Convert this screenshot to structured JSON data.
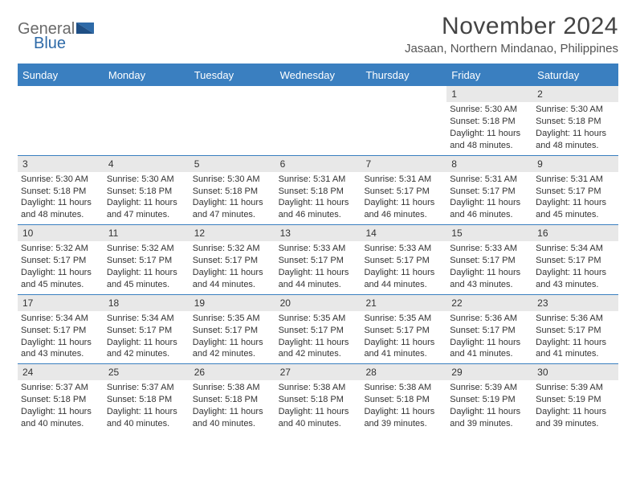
{
  "brand": {
    "text1": "General",
    "text2": "Blue"
  },
  "colors": {
    "accent": "#3a7fc0",
    "header_text": "#ffffff",
    "daynum_bg": "#e8e8e8",
    "body_text": "#333333"
  },
  "title": "November 2024",
  "location": "Jasaan, Northern Mindanao, Philippines",
  "day_headers": [
    "Sunday",
    "Monday",
    "Tuesday",
    "Wednesday",
    "Thursday",
    "Friday",
    "Saturday"
  ],
  "weeks": [
    [
      {
        "day": "",
        "lines": [
          "",
          "",
          "",
          ""
        ]
      },
      {
        "day": "",
        "lines": [
          "",
          "",
          "",
          ""
        ]
      },
      {
        "day": "",
        "lines": [
          "",
          "",
          "",
          ""
        ]
      },
      {
        "day": "",
        "lines": [
          "",
          "",
          "",
          ""
        ]
      },
      {
        "day": "",
        "lines": [
          "",
          "",
          "",
          ""
        ]
      },
      {
        "day": "1",
        "lines": [
          "Sunrise: 5:30 AM",
          "Sunset: 5:18 PM",
          "Daylight: 11 hours",
          "and 48 minutes."
        ]
      },
      {
        "day": "2",
        "lines": [
          "Sunrise: 5:30 AM",
          "Sunset: 5:18 PM",
          "Daylight: 11 hours",
          "and 48 minutes."
        ]
      }
    ],
    [
      {
        "day": "3",
        "lines": [
          "Sunrise: 5:30 AM",
          "Sunset: 5:18 PM",
          "Daylight: 11 hours",
          "and 48 minutes."
        ]
      },
      {
        "day": "4",
        "lines": [
          "Sunrise: 5:30 AM",
          "Sunset: 5:18 PM",
          "Daylight: 11 hours",
          "and 47 minutes."
        ]
      },
      {
        "day": "5",
        "lines": [
          "Sunrise: 5:30 AM",
          "Sunset: 5:18 PM",
          "Daylight: 11 hours",
          "and 47 minutes."
        ]
      },
      {
        "day": "6",
        "lines": [
          "Sunrise: 5:31 AM",
          "Sunset: 5:18 PM",
          "Daylight: 11 hours",
          "and 46 minutes."
        ]
      },
      {
        "day": "7",
        "lines": [
          "Sunrise: 5:31 AM",
          "Sunset: 5:17 PM",
          "Daylight: 11 hours",
          "and 46 minutes."
        ]
      },
      {
        "day": "8",
        "lines": [
          "Sunrise: 5:31 AM",
          "Sunset: 5:17 PM",
          "Daylight: 11 hours",
          "and 46 minutes."
        ]
      },
      {
        "day": "9",
        "lines": [
          "Sunrise: 5:31 AM",
          "Sunset: 5:17 PM",
          "Daylight: 11 hours",
          "and 45 minutes."
        ]
      }
    ],
    [
      {
        "day": "10",
        "lines": [
          "Sunrise: 5:32 AM",
          "Sunset: 5:17 PM",
          "Daylight: 11 hours",
          "and 45 minutes."
        ]
      },
      {
        "day": "11",
        "lines": [
          "Sunrise: 5:32 AM",
          "Sunset: 5:17 PM",
          "Daylight: 11 hours",
          "and 45 minutes."
        ]
      },
      {
        "day": "12",
        "lines": [
          "Sunrise: 5:32 AM",
          "Sunset: 5:17 PM",
          "Daylight: 11 hours",
          "and 44 minutes."
        ]
      },
      {
        "day": "13",
        "lines": [
          "Sunrise: 5:33 AM",
          "Sunset: 5:17 PM",
          "Daylight: 11 hours",
          "and 44 minutes."
        ]
      },
      {
        "day": "14",
        "lines": [
          "Sunrise: 5:33 AM",
          "Sunset: 5:17 PM",
          "Daylight: 11 hours",
          "and 44 minutes."
        ]
      },
      {
        "day": "15",
        "lines": [
          "Sunrise: 5:33 AM",
          "Sunset: 5:17 PM",
          "Daylight: 11 hours",
          "and 43 minutes."
        ]
      },
      {
        "day": "16",
        "lines": [
          "Sunrise: 5:34 AM",
          "Sunset: 5:17 PM",
          "Daylight: 11 hours",
          "and 43 minutes."
        ]
      }
    ],
    [
      {
        "day": "17",
        "lines": [
          "Sunrise: 5:34 AM",
          "Sunset: 5:17 PM",
          "Daylight: 11 hours",
          "and 43 minutes."
        ]
      },
      {
        "day": "18",
        "lines": [
          "Sunrise: 5:34 AM",
          "Sunset: 5:17 PM",
          "Daylight: 11 hours",
          "and 42 minutes."
        ]
      },
      {
        "day": "19",
        "lines": [
          "Sunrise: 5:35 AM",
          "Sunset: 5:17 PM",
          "Daylight: 11 hours",
          "and 42 minutes."
        ]
      },
      {
        "day": "20",
        "lines": [
          "Sunrise: 5:35 AM",
          "Sunset: 5:17 PM",
          "Daylight: 11 hours",
          "and 42 minutes."
        ]
      },
      {
        "day": "21",
        "lines": [
          "Sunrise: 5:35 AM",
          "Sunset: 5:17 PM",
          "Daylight: 11 hours",
          "and 41 minutes."
        ]
      },
      {
        "day": "22",
        "lines": [
          "Sunrise: 5:36 AM",
          "Sunset: 5:17 PM",
          "Daylight: 11 hours",
          "and 41 minutes."
        ]
      },
      {
        "day": "23",
        "lines": [
          "Sunrise: 5:36 AM",
          "Sunset: 5:17 PM",
          "Daylight: 11 hours",
          "and 41 minutes."
        ]
      }
    ],
    [
      {
        "day": "24",
        "lines": [
          "Sunrise: 5:37 AM",
          "Sunset: 5:18 PM",
          "Daylight: 11 hours",
          "and 40 minutes."
        ]
      },
      {
        "day": "25",
        "lines": [
          "Sunrise: 5:37 AM",
          "Sunset: 5:18 PM",
          "Daylight: 11 hours",
          "and 40 minutes."
        ]
      },
      {
        "day": "26",
        "lines": [
          "Sunrise: 5:38 AM",
          "Sunset: 5:18 PM",
          "Daylight: 11 hours",
          "and 40 minutes."
        ]
      },
      {
        "day": "27",
        "lines": [
          "Sunrise: 5:38 AM",
          "Sunset: 5:18 PM",
          "Daylight: 11 hours",
          "and 40 minutes."
        ]
      },
      {
        "day": "28",
        "lines": [
          "Sunrise: 5:38 AM",
          "Sunset: 5:18 PM",
          "Daylight: 11 hours",
          "and 39 minutes."
        ]
      },
      {
        "day": "29",
        "lines": [
          "Sunrise: 5:39 AM",
          "Sunset: 5:19 PM",
          "Daylight: 11 hours",
          "and 39 minutes."
        ]
      },
      {
        "day": "30",
        "lines": [
          "Sunrise: 5:39 AM",
          "Sunset: 5:19 PM",
          "Daylight: 11 hours",
          "and 39 minutes."
        ]
      }
    ]
  ]
}
